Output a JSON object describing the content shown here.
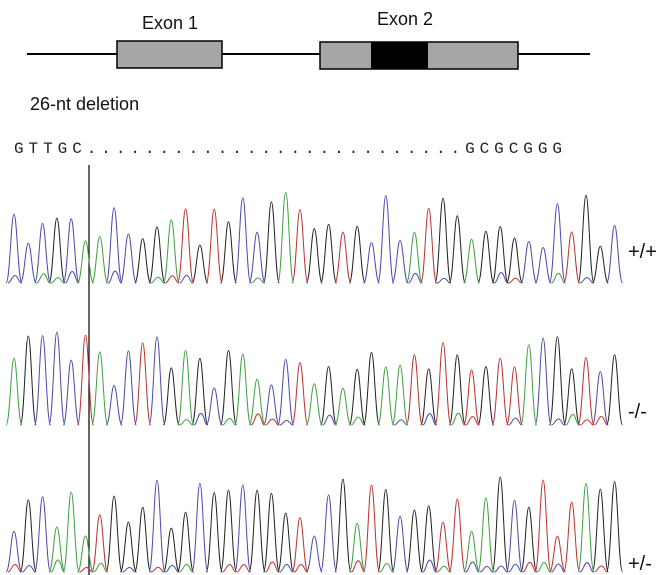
{
  "gene_diagram": {
    "exons": [
      "Exon 1",
      "Exon 2"
    ]
  },
  "deletion_label": "26-nt deletion",
  "sequence": "GTTGC..........................GCGCGGG",
  "genotypes": [
    "+/+",
    "-/-",
    "+/-"
  ]
}
